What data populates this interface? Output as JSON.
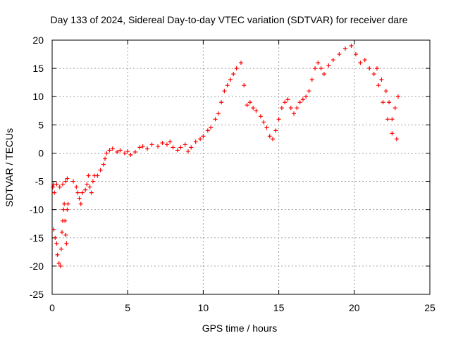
{
  "chart_data": {
    "type": "scatter",
    "title": "Day 133 of 2024, Sidereal Day-to-day VTEC variation (SDTVAR) for receiver dare",
    "xlabel": "GPS time / hours",
    "ylabel": "SDTVAR / TECUs",
    "xlim": [
      0,
      25
    ],
    "ylim": [
      -25,
      20
    ],
    "x_ticks": [
      0,
      5,
      10,
      15,
      20,
      25
    ],
    "y_ticks": [
      -25,
      -20,
      -15,
      -10,
      -5,
      0,
      5,
      10,
      15,
      20
    ],
    "grid": true,
    "marker": "+",
    "series_color": "#ff0000",
    "series": [
      {
        "name": "SDTVAR",
        "points": [
          [
            0.05,
            -6
          ],
          [
            0.1,
            -5.5
          ],
          [
            0.15,
            -7
          ],
          [
            0.1,
            -13.5
          ],
          [
            0.2,
            -15
          ],
          [
            0.3,
            -16
          ],
          [
            0.35,
            -18
          ],
          [
            0.45,
            -19.5
          ],
          [
            0.55,
            -20
          ],
          [
            0.6,
            -17
          ],
          [
            0.65,
            -14
          ],
          [
            0.7,
            -12
          ],
          [
            0.75,
            -10
          ],
          [
            0.8,
            -9
          ],
          [
            0.85,
            -12
          ],
          [
            0.9,
            -14.5
          ],
          [
            0.95,
            -16
          ],
          [
            1.0,
            -10
          ],
          [
            1.05,
            -9
          ],
          [
            0.3,
            -5.5
          ],
          [
            0.5,
            -6
          ],
          [
            0.7,
            -5.5
          ],
          [
            0.9,
            -5
          ],
          [
            1.0,
            -4.5
          ],
          [
            1.4,
            -5
          ],
          [
            1.6,
            -6
          ],
          [
            1.7,
            -7
          ],
          [
            1.8,
            -8
          ],
          [
            1.9,
            -9
          ],
          [
            2.0,
            -7
          ],
          [
            2.2,
            -6.5
          ],
          [
            2.3,
            -5.5
          ],
          [
            2.4,
            -4
          ],
          [
            2.5,
            -6
          ],
          [
            2.6,
            -7
          ],
          [
            2.7,
            -5
          ],
          [
            2.8,
            -4
          ],
          [
            3.0,
            -4
          ],
          [
            3.2,
            -3
          ],
          [
            3.4,
            -2
          ],
          [
            3.5,
            -1
          ],
          [
            3.6,
            0
          ],
          [
            3.8,
            0.5
          ],
          [
            4.0,
            0.8
          ],
          [
            4.3,
            0.2
          ],
          [
            4.5,
            0.5
          ],
          [
            4.8,
            0
          ],
          [
            5.0,
            0.3
          ],
          [
            5.2,
            -0.3
          ],
          [
            5.5,
            0.2
          ],
          [
            5.8,
            1
          ],
          [
            6.0,
            1.2
          ],
          [
            6.3,
            0.8
          ],
          [
            6.6,
            1.5
          ],
          [
            7.0,
            1.2
          ],
          [
            7.3,
            1.8
          ],
          [
            7.6,
            1.5
          ],
          [
            7.8,
            2
          ],
          [
            8.0,
            1
          ],
          [
            8.3,
            0.5
          ],
          [
            8.5,
            1
          ],
          [
            8.8,
            1.5
          ],
          [
            9.0,
            0.3
          ],
          [
            9.2,
            1
          ],
          [
            9.5,
            2
          ],
          [
            9.8,
            2.5
          ],
          [
            10.0,
            3
          ],
          [
            10.3,
            4
          ],
          [
            10.5,
            4.5
          ],
          [
            10.8,
            6
          ],
          [
            11.0,
            7
          ],
          [
            11.2,
            9
          ],
          [
            11.4,
            11
          ],
          [
            11.6,
            12
          ],
          [
            11.8,
            13
          ],
          [
            12.0,
            14
          ],
          [
            12.2,
            15
          ],
          [
            12.5,
            16
          ],
          [
            12.7,
            12
          ],
          [
            12.9,
            8.5
          ],
          [
            13.1,
            9
          ],
          [
            13.3,
            8
          ],
          [
            13.5,
            7.5
          ],
          [
            13.8,
            6.5
          ],
          [
            14.0,
            5.5
          ],
          [
            14.2,
            4.5
          ],
          [
            14.4,
            3
          ],
          [
            14.6,
            2.5
          ],
          [
            14.8,
            4
          ],
          [
            15.0,
            6
          ],
          [
            15.2,
            8
          ],
          [
            15.4,
            9
          ],
          [
            15.6,
            9.5
          ],
          [
            15.8,
            8
          ],
          [
            16.0,
            7
          ],
          [
            16.2,
            8
          ],
          [
            16.4,
            9
          ],
          [
            16.6,
            9.5
          ],
          [
            16.8,
            10
          ],
          [
            17.0,
            11
          ],
          [
            17.2,
            13
          ],
          [
            17.4,
            15
          ],
          [
            17.6,
            16
          ],
          [
            17.8,
            15
          ],
          [
            18.0,
            14
          ],
          [
            18.3,
            15.5
          ],
          [
            18.6,
            16.5
          ],
          [
            19.0,
            17.5
          ],
          [
            19.4,
            18.5
          ],
          [
            19.8,
            19
          ],
          [
            20.1,
            17.5
          ],
          [
            20.4,
            16
          ],
          [
            20.7,
            16.5
          ],
          [
            21.0,
            15
          ],
          [
            21.3,
            14
          ],
          [
            21.6,
            12
          ],
          [
            21.9,
            9
          ],
          [
            22.2,
            6
          ],
          [
            22.5,
            3.5
          ],
          [
            22.8,
            2.5
          ],
          [
            22.9,
            10
          ],
          [
            22.7,
            8
          ],
          [
            22.5,
            6
          ],
          [
            22.3,
            9
          ],
          [
            22.1,
            11
          ],
          [
            21.8,
            13
          ],
          [
            21.5,
            15
          ]
        ]
      }
    ]
  }
}
